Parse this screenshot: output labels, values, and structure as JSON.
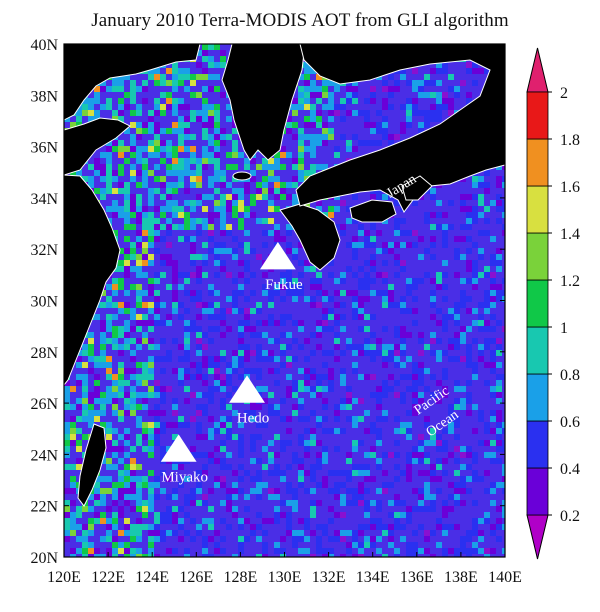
{
  "title": "January 2010 Terra-MODIS AOT from GLI algorithm",
  "lat_ticks": [
    "40N",
    "38N",
    "36N",
    "34N",
    "32N",
    "30N",
    "28N",
    "26N",
    "24N",
    "22N",
    "20N"
  ],
  "lon_ticks": [
    "120E",
    "122E",
    "124E",
    "126E",
    "128E",
    "130E",
    "132E",
    "134E",
    "136E",
    "138E",
    "140E"
  ],
  "colorbar": {
    "labels": [
      "0.2",
      "0.4",
      "0.6",
      "0.8",
      "1",
      "1.2",
      "1.4",
      "1.6",
      "1.8",
      "2"
    ],
    "colors": [
      "#6a00d8",
      "#2a30f0",
      "#1aa0e8",
      "#18c8b0",
      "#10c848",
      "#7ad23a",
      "#d8e040",
      "#f09020",
      "#e81818"
    ],
    "under_color": "#b000c8",
    "over_color": "#e0206e"
  },
  "sites": [
    {
      "name": "Fukue",
      "lon": 129.7,
      "lat": 31.7
    },
    {
      "name": "Hedo",
      "lon": 128.3,
      "lat": 26.5
    },
    {
      "name": "Miyako",
      "lon": 125.2,
      "lat": 24.2
    }
  ],
  "region_labels": {
    "japan": "Japan",
    "pacific": "Pacific",
    "ocean": "Ocean"
  },
  "land_color": "#000000",
  "coast_color": "#ffffff"
}
